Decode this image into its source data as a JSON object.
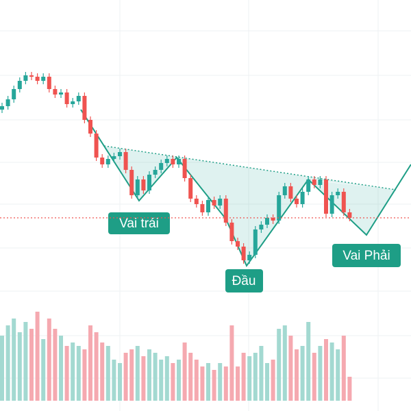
{
  "chart_data": {
    "type": "candlestick",
    "annotations": [
      "Vai trái",
      "Đầu",
      "Vai Phải"
    ],
    "up_color": "#26a69a",
    "down_color": "#ef5350",
    "volume_up_color": "#a3d9d1",
    "volume_down_color": "#f5a9b0",
    "ylim": [
      0,
      60
    ],
    "vlim": [
      0,
      150
    ],
    "open": [
      44,
      44.5,
      45.5,
      47,
      48.2,
      49,
      48.8,
      48.2,
      48.8,
      47,
      46.2,
      46.5,
      44.8,
      45.2,
      46,
      42.5,
      40.5,
      37,
      36,
      36.8,
      37.2,
      37.8,
      35.2,
      31.5,
      33.8,
      32.2,
      34.5,
      35.2,
      36.2,
      36.8,
      36,
      36.8,
      34,
      31,
      30.2,
      29,
      30.8,
      30,
      31,
      27.5,
      24.8,
      24,
      22,
      22.8,
      26.5,
      27.2,
      28.2,
      27.8,
      31.5,
      32.8,
      31,
      30.2,
      32,
      33.8,
      33,
      33.8,
      28.8,
      31.5,
      32,
      29
    ],
    "high": [
      45,
      46,
      47.5,
      48.7,
      49.5,
      49.5,
      49.3,
      49.3,
      49.3,
      47.5,
      47,
      47,
      45.7,
      46.5,
      46.5,
      43,
      41,
      37.5,
      37.3,
      37.7,
      38.3,
      38.3,
      35.7,
      34.3,
      34.3,
      35,
      35.7,
      36.7,
      37.3,
      37.3,
      37.3,
      37.3,
      34.5,
      31.5,
      30.7,
      31.3,
      31.3,
      31.5,
      31.5,
      28,
      25.3,
      24.5,
      23.3,
      27,
      27.7,
      28.7,
      28.7,
      32,
      33.3,
      33.3,
      31.5,
      32.5,
      34.3,
      34.3,
      34.3,
      34.3,
      32,
      32.5,
      32.5,
      29.5
    ],
    "low": [
      43.5,
      44,
      45,
      46.5,
      47.7,
      48.3,
      47.7,
      47.7,
      46.5,
      45.7,
      45.7,
      44.3,
      44.3,
      44.7,
      42,
      40,
      36.5,
      35.5,
      35.5,
      36.3,
      36.7,
      34.7,
      31,
      31,
      31.7,
      31.7,
      34,
      34.7,
      35.7,
      35.5,
      35.5,
      33.5,
      30.5,
      29.7,
      28.5,
      28.5,
      29.5,
      29.5,
      27,
      24.3,
      23.5,
      21.5,
      21.5,
      22.3,
      26,
      26.7,
      27.3,
      27.3,
      31,
      30.5,
      29.7,
      29.7,
      31.5,
      32.5,
      32.5,
      28.3,
      28.3,
      31,
      28.5,
      27.7
    ],
    "close": [
      44.5,
      45.5,
      47,
      48.2,
      49,
      48.8,
      48.2,
      48.8,
      47,
      46.2,
      46.5,
      44.8,
      45.2,
      46,
      42.5,
      40.5,
      37,
      36,
      36.8,
      37.2,
      37.8,
      35.2,
      31.5,
      33.8,
      32.2,
      34.5,
      35.2,
      36.2,
      36.8,
      36,
      36.8,
      34,
      31,
      30.2,
      29,
      30.8,
      30,
      31,
      27.5,
      24.8,
      24,
      22,
      22.8,
      26.5,
      27.2,
      28.2,
      27.8,
      31.5,
      32.8,
      31,
      30.2,
      32,
      33.8,
      33,
      33.8,
      28.8,
      31.5,
      32,
      29,
      28.2
    ],
    "volume": [
      95,
      110,
      120,
      100,
      115,
      105,
      130,
      90,
      120,
      105,
      95,
      80,
      85,
      80,
      75,
      110,
      100,
      85,
      80,
      60,
      55,
      70,
      75,
      80,
      65,
      75,
      70,
      60,
      65,
      55,
      60,
      85,
      70,
      60,
      50,
      55,
      45,
      55,
      50,
      110,
      50,
      70,
      65,
      70,
      80,
      55,
      60,
      105,
      110,
      95,
      75,
      80,
      115,
      70,
      80,
      90,
      85,
      75,
      95,
      35
    ]
  }
}
